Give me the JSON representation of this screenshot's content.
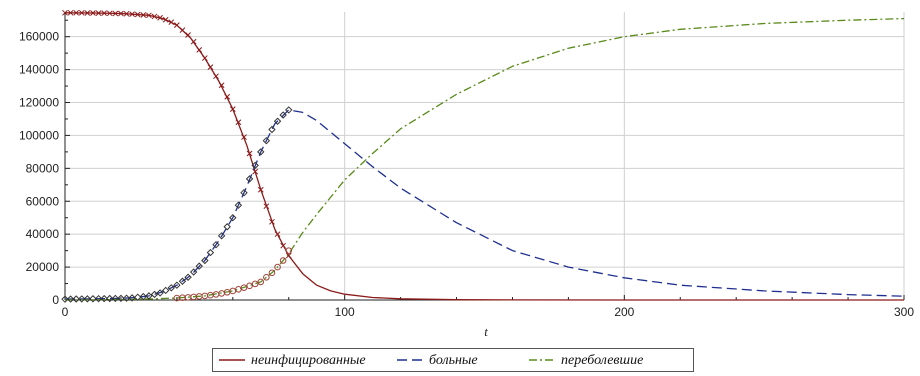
{
  "chart_data": {
    "type": "line",
    "title": "",
    "xlabel": "t",
    "ylabel": "",
    "xlim": [
      0,
      300
    ],
    "ylim": [
      0,
      175000
    ],
    "x_ticks": [
      0,
      100,
      200,
      300
    ],
    "y_ticks": [
      0,
      20000,
      40000,
      60000,
      80000,
      100000,
      120000,
      140000,
      160000
    ],
    "grid": true,
    "legend_position": "bottom",
    "series": [
      {
        "name": "неинфицированные",
        "style": "solid",
        "color": "#8b1a1a",
        "x": [
          0,
          10,
          20,
          30,
          35,
          40,
          45,
          50,
          55,
          60,
          65,
          70,
          75,
          80,
          85,
          90,
          95,
          100,
          110,
          120,
          140,
          160,
          200,
          250,
          300
        ],
        "y": [
          174500,
          174400,
          174100,
          173000,
          171000,
          167000,
          159000,
          147000,
          133000,
          116000,
          94000,
          67000,
          43000,
          27000,
          16000,
          9000,
          5500,
          3500,
          1500,
          700,
          200,
          80,
          30,
          10,
          0
        ]
      },
      {
        "name": "больные",
        "style": "dash",
        "color": "#1f2f8f",
        "x": [
          0,
          10,
          20,
          25,
          30,
          35,
          40,
          45,
          50,
          55,
          60,
          65,
          70,
          75,
          80,
          85,
          90,
          100,
          110,
          120,
          140,
          160,
          180,
          200,
          220,
          250,
          280,
          300
        ],
        "y": [
          500,
          700,
          1000,
          1500,
          2500,
          5000,
          9000,
          15000,
          24000,
          36000,
          50000,
          69000,
          90000,
          107000,
          115500,
          114000,
          109000,
          95000,
          81000,
          68000,
          47000,
          30000,
          20000,
          13500,
          9000,
          5500,
          3300,
          2300
        ]
      },
      {
        "name": "переболевшие",
        "style": "dashdot",
        "color": "#5a8a1a",
        "x": [
          0,
          10,
          20,
          30,
          40,
          50,
          60,
          70,
          75,
          80,
          85,
          90,
          100,
          110,
          120,
          140,
          160,
          180,
          200,
          220,
          250,
          280,
          300
        ],
        "y": [
          0,
          100,
          300,
          600,
          1200,
          2500,
          5500,
          11000,
          18000,
          28000,
          41000,
          52000,
          73000,
          89000,
          104000,
          125000,
          142000,
          153000,
          160000,
          164500,
          168000,
          170000,
          171000
        ]
      }
    ],
    "observed_markers": [
      {
        "series": "неинфицированные",
        "marker": "x",
        "x": [
          0,
          2,
          4,
          6,
          8,
          10,
          12,
          14,
          16,
          18,
          20,
          22,
          24,
          26,
          28,
          30,
          32,
          34,
          36,
          38,
          40,
          42,
          44,
          46,
          48,
          50,
          52,
          54,
          56,
          58,
          60,
          62,
          64,
          66,
          68,
          70,
          72,
          74,
          76,
          78,
          80
        ],
        "y": [
          174500,
          174500,
          174500,
          174500,
          174400,
          174400,
          174300,
          174300,
          174200,
          174100,
          174100,
          173900,
          173700,
          173500,
          173200,
          173000,
          172300,
          171500,
          170300,
          168800,
          167000,
          164000,
          161000,
          157000,
          152000,
          147000,
          141500,
          136000,
          130500,
          123500,
          116000,
          108000,
          99000,
          89000,
          78000,
          67000,
          57000,
          47500,
          40000,
          33000,
          27000
        ]
      },
      {
        "series": "больные",
        "marker": "diamond",
        "x": [
          0,
          2,
          4,
          6,
          8,
          10,
          12,
          14,
          16,
          18,
          20,
          22,
          24,
          26,
          28,
          30,
          32,
          34,
          36,
          38,
          40,
          42,
          44,
          46,
          48,
          50,
          52,
          54,
          56,
          58,
          60,
          62,
          64,
          66,
          68,
          70,
          72,
          74,
          76,
          78,
          80
        ],
        "y": [
          500,
          550,
          600,
          650,
          700,
          750,
          800,
          850,
          900,
          950,
          1000,
          1100,
          1300,
          1700,
          2100,
          2500,
          3400,
          4300,
          5800,
          7400,
          9000,
          11400,
          13800,
          17000,
          20600,
          24000,
          28800,
          33600,
          39000,
          44500,
          50000,
          57600,
          65200,
          73600,
          81800,
          90000,
          96800,
          103600,
          108600,
          112400,
          115500
        ]
      },
      {
        "series": "переболевшие",
        "marker": "circle",
        "x": [
          40,
          42,
          44,
          46,
          48,
          50,
          52,
          54,
          56,
          58,
          60,
          62,
          64,
          66,
          68,
          70,
          72,
          74,
          76,
          78,
          80
        ],
        "y": [
          1200,
          1400,
          1600,
          1900,
          2200,
          2500,
          2900,
          3400,
          4000,
          4700,
          5500,
          6500,
          7500,
          8600,
          9800,
          11000,
          13800,
          16500,
          20000,
          24000,
          30000
        ]
      }
    ]
  }
}
